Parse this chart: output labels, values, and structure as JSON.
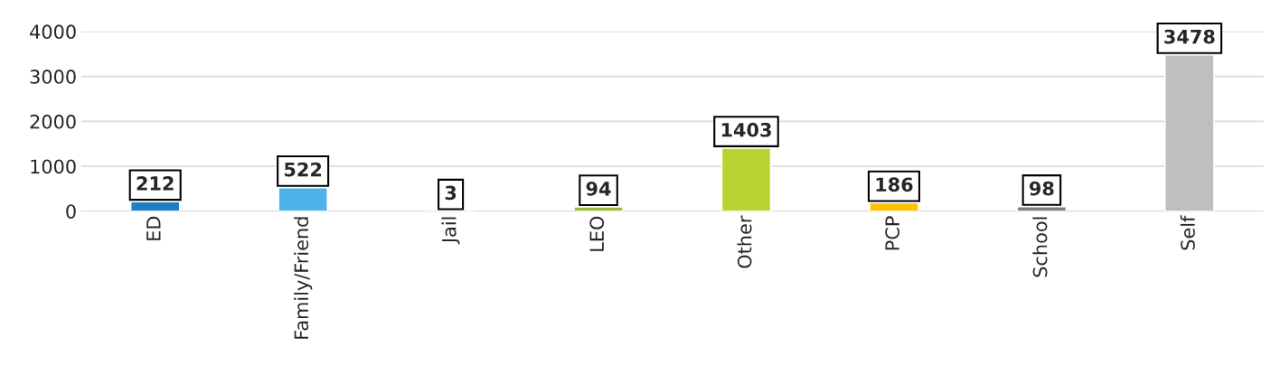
{
  "chart_data": {
    "type": "bar",
    "categories": [
      "ED",
      "Family/Friend",
      "Jail",
      "LEO",
      "Other",
      "PCP",
      "School",
      "Self"
    ],
    "values": [
      212,
      522,
      3,
      94,
      1403,
      186,
      98,
      3478
    ],
    "colors": [
      "#1f7fc4",
      "#4db3e8",
      "#2e75b6",
      "#9bbb3b",
      "#b8d433",
      "#ffc000",
      "#808080",
      "#bfbfbf"
    ],
    "ylim": [
      0,
      4000
    ],
    "yticks": [
      0,
      1000,
      2000,
      3000,
      4000
    ],
    "grid": "y",
    "data_labels": true
  }
}
